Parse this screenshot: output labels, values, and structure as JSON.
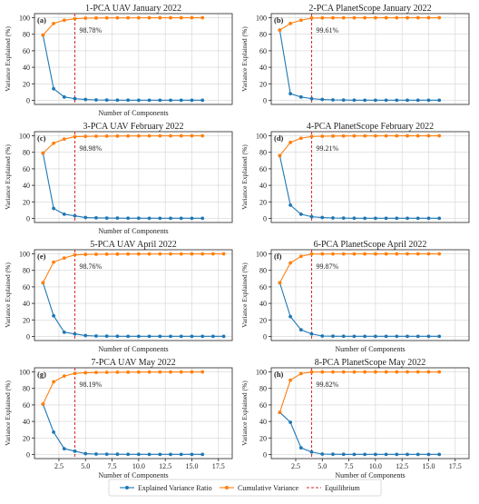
{
  "colors": {
    "explained": "#1f77b4",
    "cumulative": "#ff7f0e",
    "equilibrium": "#d62728"
  },
  "legend": {
    "items": [
      {
        "key": "explained",
        "label": "Explained Variance Ratio",
        "style": "line-marker"
      },
      {
        "key": "cumulative",
        "label": "Cumulative Variance",
        "style": "line-marker"
      },
      {
        "key": "equilibrium",
        "label": "Equilibrium",
        "style": "dashed"
      }
    ],
    "placement": "bottom-center"
  },
  "chart_data": [
    {
      "type": "line",
      "panel_label": "(a)",
      "title": "1-PCA UAV January 2022",
      "ylabel": "Variance Explained (%)",
      "xlabel": "Number of Components",
      "x": [
        1,
        2,
        3,
        4,
        5,
        6,
        7,
        8,
        9,
        10,
        11,
        12,
        13,
        14,
        15,
        16
      ],
      "series": [
        {
          "key": "explained",
          "name": "Explained Variance Ratio",
          "values": [
            79,
            14,
            4,
            2,
            1,
            0.5,
            0.3,
            0.2,
            0.2,
            0.1,
            0.1,
            0.1,
            0.1,
            0.1,
            0.1,
            0.1
          ]
        },
        {
          "key": "cumulative",
          "name": "Cumulative Variance",
          "values": [
            79,
            93,
            97,
            98.78,
            99.5,
            99.7,
            99.8,
            99.85,
            99.9,
            99.92,
            99.94,
            99.96,
            99.97,
            99.98,
            99.99,
            100
          ]
        }
      ],
      "equilibrium_x": 4,
      "annotation": "98.78%",
      "xlim": [
        0.2,
        18.8
      ],
      "ylim": [
        -5,
        105
      ],
      "yticks": [
        0,
        20,
        40,
        60,
        80,
        100
      ],
      "xticks": [],
      "grid": true
    },
    {
      "type": "line",
      "panel_label": "(b)",
      "title": "2-PCA PlanetScope January 2022",
      "ylabel": "Variance Explained (%)",
      "xlabel": "",
      "x": [
        1,
        2,
        3,
        4,
        5,
        6,
        7,
        8,
        9,
        10,
        11,
        12,
        13,
        14,
        15,
        16
      ],
      "series": [
        {
          "key": "explained",
          "name": "Explained Variance Ratio",
          "values": [
            85,
            8,
            4,
            2,
            1,
            0.5,
            0.3,
            0.2,
            0.1,
            0.1,
            0.1,
            0.1,
            0.1,
            0.1,
            0.1,
            0.1
          ]
        },
        {
          "key": "cumulative",
          "name": "Cumulative Variance",
          "values": [
            85,
            93,
            97,
            99.61,
            99.8,
            99.85,
            99.9,
            99.92,
            99.94,
            99.95,
            99.96,
            99.97,
            99.98,
            99.99,
            99.99,
            100
          ]
        }
      ],
      "equilibrium_x": 4,
      "annotation": "99.61%",
      "xlim": [
        0.2,
        18.8
      ],
      "ylim": [
        -5,
        105
      ],
      "yticks": [
        0,
        20,
        40,
        60,
        80,
        100
      ],
      "xticks": [],
      "grid": true
    },
    {
      "type": "line",
      "panel_label": "(c)",
      "title": "3-PCA UAV February 2022",
      "ylabel": "Variance Explained (%)",
      "xlabel": "Number of Components",
      "x": [
        1,
        2,
        3,
        4,
        5,
        6,
        7,
        8,
        9,
        10,
        11,
        12,
        13,
        14,
        15,
        16
      ],
      "series": [
        {
          "key": "explained",
          "name": "Explained Variance Ratio",
          "values": [
            79,
            12,
            5,
            3,
            1,
            0.6,
            0.4,
            0.3,
            0.2,
            0.2,
            0.1,
            0.1,
            0.1,
            0.1,
            0.1,
            0.1
          ]
        },
        {
          "key": "cumulative",
          "name": "Cumulative Variance",
          "values": [
            79,
            91,
            96,
            98.98,
            99.3,
            99.5,
            99.6,
            99.7,
            99.8,
            99.85,
            99.9,
            99.93,
            99.95,
            99.97,
            99.99,
            100
          ]
        }
      ],
      "equilibrium_x": 4,
      "annotation": "98.98%",
      "xlim": [
        0.2,
        18.8
      ],
      "ylim": [
        -5,
        105
      ],
      "yticks": [
        0,
        20,
        40,
        60,
        80,
        100
      ],
      "xticks": [],
      "grid": true
    },
    {
      "type": "line",
      "panel_label": "(d)",
      "title": "4-PCA PlanetScope February 2022",
      "ylabel": "Variance Explained (%)",
      "xlabel": "",
      "x": [
        1,
        2,
        3,
        4,
        5,
        6,
        7,
        8,
        9,
        10,
        11,
        12,
        13,
        14,
        15,
        16
      ],
      "series": [
        {
          "key": "explained",
          "name": "Explained Variance Ratio",
          "values": [
            76,
            16,
            5,
            2,
            1,
            0.5,
            0.3,
            0.2,
            0.1,
            0.1,
            0.1,
            0.1,
            0.1,
            0.1,
            0.1,
            0.1
          ]
        },
        {
          "key": "cumulative",
          "name": "Cumulative Variance",
          "values": [
            76,
            92,
            97,
            99.21,
            99.5,
            99.7,
            99.8,
            99.85,
            99.9,
            99.92,
            99.94,
            99.96,
            99.97,
            99.98,
            99.99,
            100
          ]
        }
      ],
      "equilibrium_x": 4,
      "annotation": "99.21%",
      "xlim": [
        0.2,
        18.8
      ],
      "ylim": [
        -5,
        105
      ],
      "yticks": [
        0,
        20,
        40,
        60,
        80,
        100
      ],
      "xticks": [],
      "grid": true
    },
    {
      "type": "line",
      "panel_label": "(e)",
      "title": "5-PCA UAV April 2022",
      "ylabel": "Variance Explained (%)",
      "xlabel": "Number of Components",
      "x": [
        1,
        2,
        3,
        4,
        5,
        6,
        7,
        8,
        9,
        10,
        11,
        12,
        13,
        14,
        15,
        16,
        17,
        18
      ],
      "series": [
        {
          "key": "explained",
          "name": "Explained Variance Ratio",
          "values": [
            65,
            25,
            5,
            3,
            1,
            0.5,
            0.3,
            0.2,
            0.1,
            0.1,
            0.1,
            0.1,
            0.1,
            0.1,
            0.1,
            0.1,
            0.1,
            0.1
          ]
        },
        {
          "key": "cumulative",
          "name": "Cumulative Variance",
          "values": [
            65,
            90,
            95,
            98.76,
            99.3,
            99.5,
            99.6,
            99.7,
            99.8,
            99.85,
            99.9,
            99.92,
            99.94,
            99.95,
            99.96,
            99.97,
            99.99,
            100
          ]
        }
      ],
      "equilibrium_x": 4,
      "annotation": "98.76%",
      "xlim": [
        0.2,
        18.8
      ],
      "ylim": [
        -5,
        105
      ],
      "yticks": [
        0,
        20,
        40,
        60,
        80,
        100
      ],
      "xticks": [],
      "grid": true
    },
    {
      "type": "line",
      "panel_label": "(f)",
      "title": "6-PCA PlanetScope April 2022",
      "ylabel": "Variance Explained (%)",
      "xlabel": "Number of Components",
      "x": [
        1,
        2,
        3,
        4,
        5,
        6,
        7,
        8,
        9,
        10,
        11,
        12,
        13,
        14,
        15,
        16
      ],
      "series": [
        {
          "key": "explained",
          "name": "Explained Variance Ratio",
          "values": [
            65,
            24,
            8,
            3,
            0.5,
            0.3,
            0.2,
            0.1,
            0.1,
            0.1,
            0.1,
            0.1,
            0.1,
            0.1,
            0.1,
            0.1
          ]
        },
        {
          "key": "cumulative",
          "name": "Cumulative Variance",
          "values": [
            65,
            89,
            97,
            99.87,
            99.9,
            99.92,
            99.94,
            99.95,
            99.96,
            99.97,
            99.98,
            99.98,
            99.99,
            99.99,
            99.99,
            100
          ]
        }
      ],
      "equilibrium_x": 4,
      "annotation": "99.87%",
      "xlim": [
        0.2,
        18.8
      ],
      "ylim": [
        -5,
        105
      ],
      "yticks": [
        0,
        20,
        40,
        60,
        80,
        100
      ],
      "xticks": [],
      "grid": true
    },
    {
      "type": "line",
      "panel_label": "(g)",
      "title": "7-PCA UAV May 2022",
      "ylabel": "Variance Explained (%)",
      "xlabel": "Number of Components",
      "x": [
        1,
        2,
        3,
        4,
        5,
        6,
        7,
        8,
        9,
        10,
        11,
        12,
        13,
        14,
        15,
        16
      ],
      "series": [
        {
          "key": "explained",
          "name": "Explained Variance Ratio",
          "values": [
            61,
            27,
            7,
            4,
            1,
            0.5,
            0.4,
            0.3,
            0.2,
            0.2,
            0.1,
            0.1,
            0.1,
            0.1,
            0.1,
            0.1
          ]
        },
        {
          "key": "cumulative",
          "name": "Cumulative Variance",
          "values": [
            61,
            88,
            95,
            98.19,
            99,
            99.3,
            99.5,
            99.6,
            99.7,
            99.8,
            99.85,
            99.9,
            99.93,
            99.95,
            99.98,
            100
          ]
        }
      ],
      "equilibrium_x": 4,
      "annotation": "98.19%",
      "xlim": [
        0.2,
        18.8
      ],
      "ylim": [
        -5,
        105
      ],
      "yticks": [
        0,
        20,
        40,
        60,
        80,
        100
      ],
      "xticks": [
        2.5,
        5.0,
        7.5,
        10.0,
        12.5,
        15.0,
        17.5
      ],
      "xtick_labels": [
        "2.5",
        "5.0",
        "7.5",
        "10.0",
        "12.5",
        "15.0",
        "17.5"
      ],
      "grid": true
    },
    {
      "type": "line",
      "panel_label": "(h)",
      "title": "8-PCA PlanetScope May 2022",
      "ylabel": "Variance Explained (%)",
      "xlabel": "Number of Components",
      "x": [
        1,
        2,
        3,
        4,
        5,
        6,
        7,
        8,
        9,
        10,
        11,
        12,
        13,
        14,
        15,
        16
      ],
      "series": [
        {
          "key": "explained",
          "name": "Explained Variance Ratio",
          "values": [
            51,
            39,
            8,
            3,
            0.5,
            0.3,
            0.2,
            0.1,
            0.1,
            0.1,
            0.1,
            0.1,
            0.1,
            0.1,
            0.1,
            0.1
          ]
        },
        {
          "key": "cumulative",
          "name": "Cumulative Variance",
          "values": [
            51,
            90,
            98,
            99.82,
            99.9,
            99.92,
            99.94,
            99.95,
            99.96,
            99.97,
            99.98,
            99.98,
            99.99,
            99.99,
            99.99,
            100
          ]
        }
      ],
      "equilibrium_x": 4,
      "annotation": "99.82%",
      "xlim": [
        0.2,
        18.8
      ],
      "ylim": [
        -5,
        105
      ],
      "yticks": [
        0,
        20,
        40,
        60,
        80,
        100
      ],
      "xticks": [
        2.5,
        5.0,
        7.5,
        10.0,
        12.5,
        15.0,
        17.5
      ],
      "xtick_labels": [
        "2.5",
        "5.0",
        "7.5",
        "10.0",
        "12.5",
        "15.0",
        "17.5"
      ],
      "grid": true
    }
  ]
}
